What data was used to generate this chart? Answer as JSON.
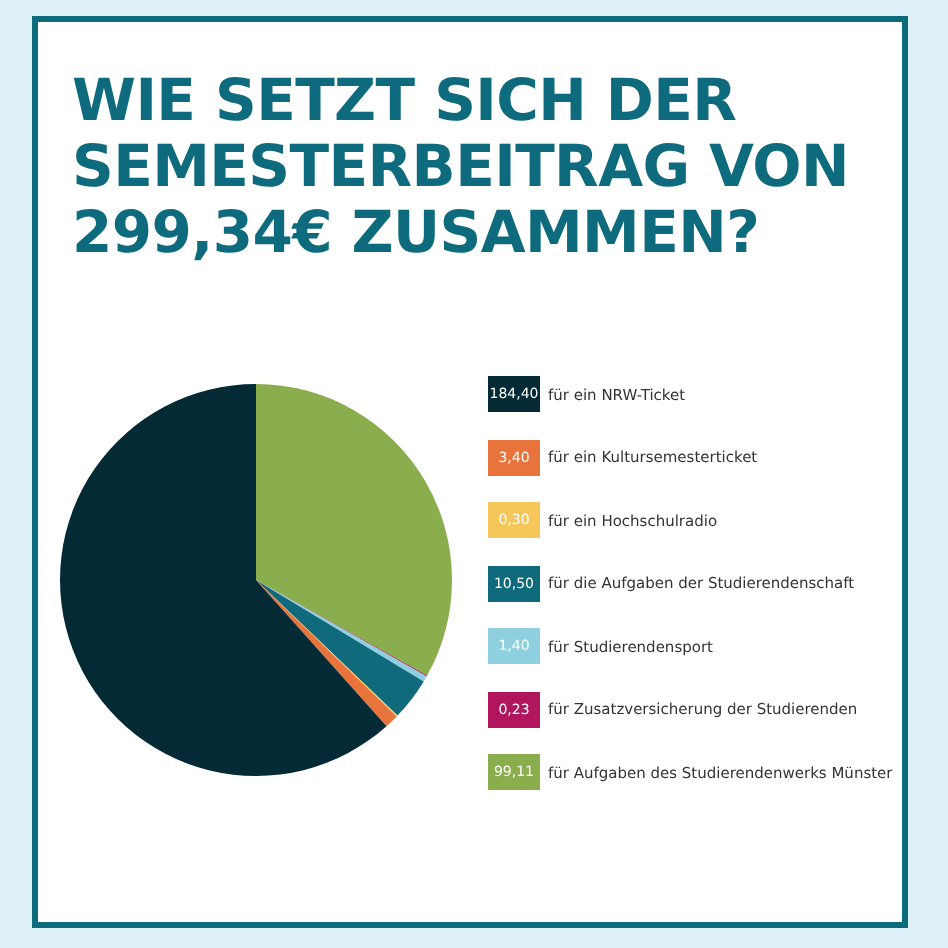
{
  "chart_data": {
    "type": "pie",
    "title": "WIE SETZT SICH DER SEMESTERBEITRAG VON 299,34€ ZUSAMMEN?",
    "categories": [
      "für ein NRW-Ticket",
      "für ein Kultursemesterticket",
      "für ein Hochschulradio",
      "für die Aufgaben der Studierendenschaft",
      "für Studierendensport",
      "für Zusatzversicherung der Studierenden",
      "für Aufgaben des Studierendenwerks Münster"
    ],
    "values": [
      184.4,
      3.4,
      0.3,
      10.5,
      1.4,
      0.23,
      99.11
    ],
    "value_labels": [
      "184,40",
      "3,40",
      "0,30",
      "10,50",
      "1,40",
      "0,23",
      "99,11"
    ],
    "colors": [
      "#032a35",
      "#e8743b",
      "#f5c75a",
      "#0f6b7c",
      "#8fd0e0",
      "#b0155d",
      "#8aad4e"
    ],
    "legend": "right"
  }
}
